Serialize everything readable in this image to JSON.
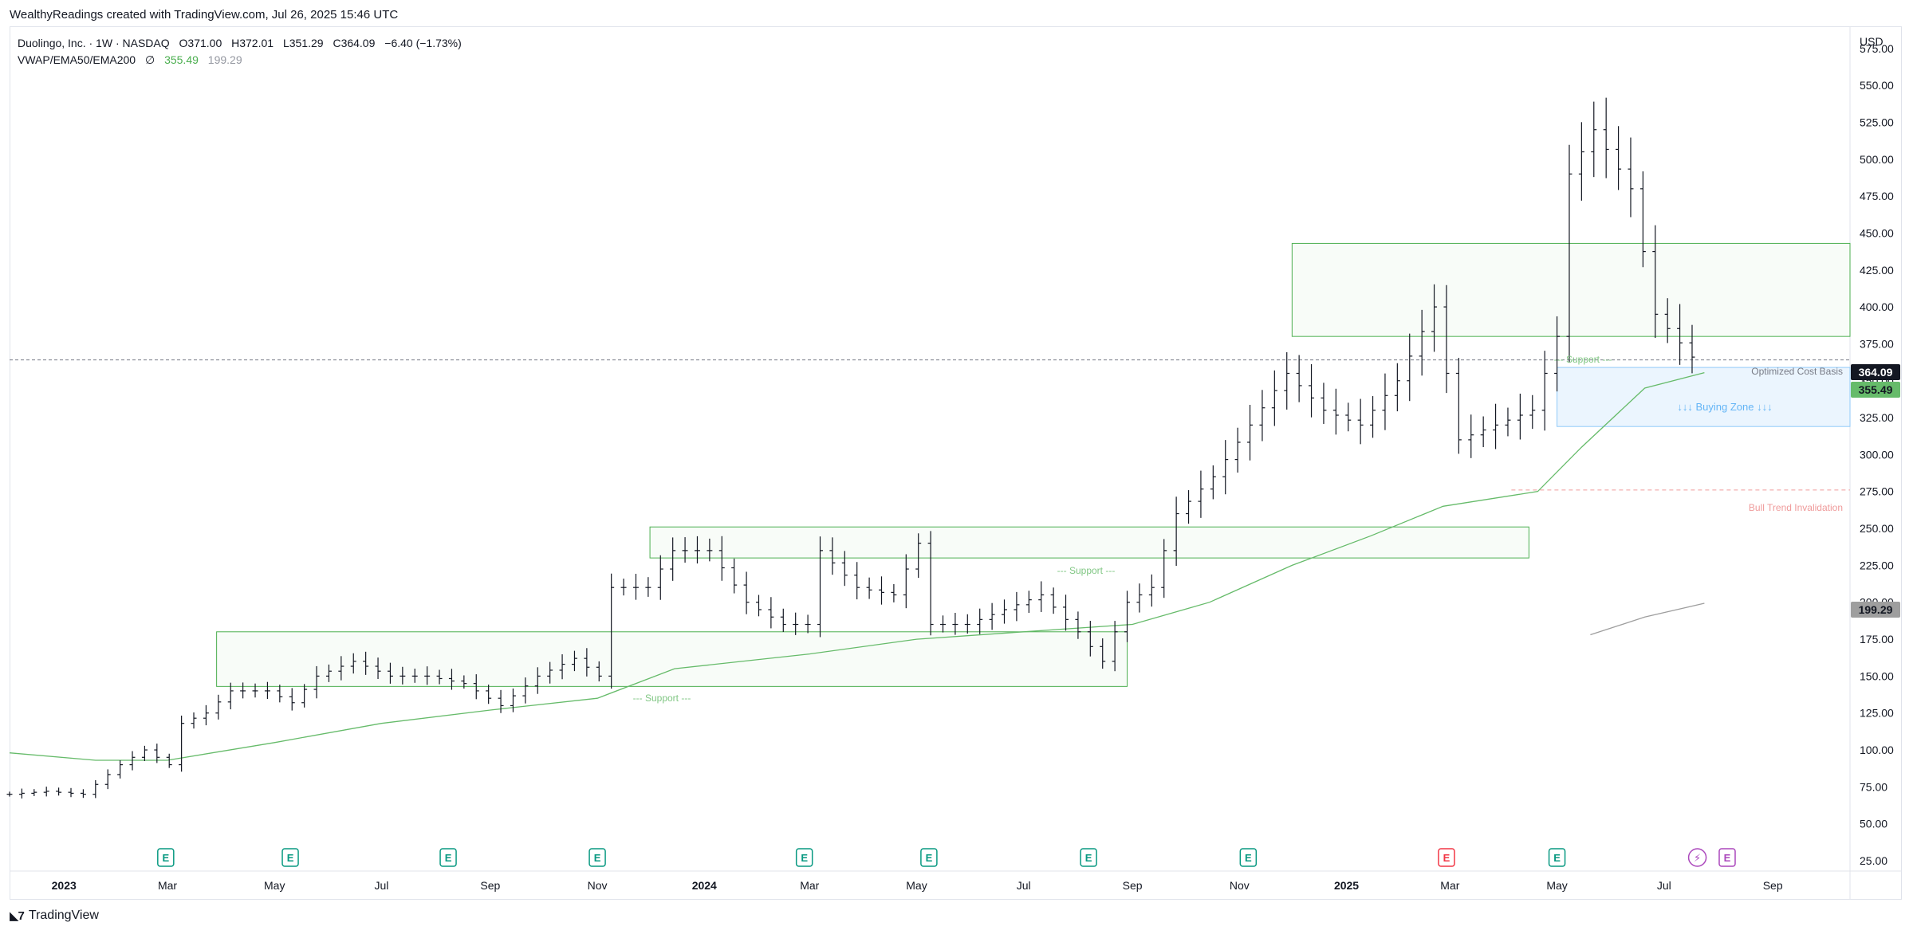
{
  "credit": "WealthyReadings created with TradingView.com, Jul 26, 2025 15:46 UTC",
  "footer_brand": "TradingView",
  "legend": {
    "symbol": "Duolingo, Inc. · 1W · NASDAQ",
    "open": "O371.00",
    "high": "H372.01",
    "low": "L351.29",
    "close": "C364.09",
    "change": "−6.40 (−1.73%)",
    "indicator": "VWAP/EMA50/EMA200",
    "indicator_symbol": "∅",
    "ema50": "355.49",
    "ema200": "199.29"
  },
  "currency": "USD",
  "colors": {
    "bar": "#131722",
    "ema": "#66bb6a",
    "ema200": "#9e9e9e",
    "zone_green": "#4caf50",
    "zone_blue": "#90caf9",
    "invalidation": "#ef9a9a",
    "earnings": "#089981",
    "earnings_neg": "#f23645"
  },
  "annotations": {
    "support1": "--- Support ---",
    "support2": "--- Support ---",
    "support3": "--- Support ---",
    "buying_zone": "↓↓↓ Buying Zone ↓↓↓",
    "cost_basis": "Optimized Cost Basis",
    "invalidation": "Bull Trend Invalidation"
  },
  "price_tags": {
    "last": "364.09",
    "ema50": "355.49",
    "ema200": "199.29"
  },
  "chart_data": {
    "type": "bar",
    "title": "",
    "ylabel": "",
    "ylim": [
      18,
      590
    ],
    "xlim": [
      "2022-12-01",
      "2025-10-15"
    ],
    "y_ticks": [
      25,
      50,
      75,
      100,
      125,
      150,
      175,
      200,
      225,
      250,
      275,
      300,
      325,
      350,
      375,
      400,
      425,
      450,
      475,
      500,
      525,
      550,
      575
    ],
    "x_ticks": [
      {
        "label": "2023",
        "date": "2023-01-01",
        "bold": true
      },
      {
        "label": "Mar",
        "date": "2023-03-01"
      },
      {
        "label": "May",
        "date": "2023-05-01"
      },
      {
        "label": "Jul",
        "date": "2023-07-01"
      },
      {
        "label": "Sep",
        "date": "2023-09-01"
      },
      {
        "label": "Nov",
        "date": "2023-11-01"
      },
      {
        "label": "2024",
        "date": "2024-01-01",
        "bold": true
      },
      {
        "label": "Mar",
        "date": "2024-03-01"
      },
      {
        "label": "May",
        "date": "2024-05-01"
      },
      {
        "label": "Jul",
        "date": "2024-07-01"
      },
      {
        "label": "Sep",
        "date": "2024-09-01"
      },
      {
        "label": "Nov",
        "date": "2024-11-01"
      },
      {
        "label": "2025",
        "date": "2025-01-01",
        "bold": true
      },
      {
        "label": "Mar",
        "date": "2025-03-01"
      },
      {
        "label": "May",
        "date": "2025-05-01"
      },
      {
        "label": "Jul",
        "date": "2025-07-01"
      },
      {
        "label": "Sep",
        "date": "2025-09-01"
      }
    ],
    "bar_anchors": [
      [
        "2022-12-01",
        70
      ],
      [
        "2022-12-22",
        72
      ],
      [
        "2023-01-12",
        70
      ],
      [
        "2023-02-02",
        90
      ],
      [
        "2023-02-16",
        100
      ],
      [
        "2023-03-02",
        90
      ],
      [
        "2023-03-09",
        118
      ],
      [
        "2023-03-23",
        125
      ],
      [
        "2023-04-06",
        140
      ],
      [
        "2023-04-27",
        140
      ],
      [
        "2023-05-11",
        132
      ],
      [
        "2023-05-25",
        150
      ],
      [
        "2023-06-15",
        160
      ],
      [
        "2023-07-06",
        150
      ],
      [
        "2023-07-27",
        150
      ],
      [
        "2023-08-17",
        145
      ],
      [
        "2023-09-07",
        130
      ],
      [
        "2023-09-28",
        150
      ],
      [
        "2023-10-19",
        162
      ],
      [
        "2023-11-02",
        150
      ],
      [
        "2023-11-09",
        210
      ],
      [
        "2023-11-30",
        210
      ],
      [
        "2023-12-14",
        235
      ],
      [
        "2024-01-04",
        235
      ],
      [
        "2024-01-25",
        200
      ],
      [
        "2024-02-15",
        185
      ],
      [
        "2024-02-29",
        185
      ],
      [
        "2024-03-07",
        235
      ],
      [
        "2024-03-28",
        210
      ],
      [
        "2024-04-18",
        205
      ],
      [
        "2024-05-02",
        240
      ],
      [
        "2024-05-09",
        185
      ],
      [
        "2024-05-30",
        185
      ],
      [
        "2024-06-20",
        195
      ],
      [
        "2024-07-11",
        205
      ],
      [
        "2024-08-01",
        180
      ],
      [
        "2024-08-15",
        160
      ],
      [
        "2024-08-29",
        200
      ],
      [
        "2024-09-12",
        210
      ],
      [
        "2024-09-26",
        260
      ],
      [
        "2024-10-17",
        285
      ],
      [
        "2024-11-07",
        320
      ],
      [
        "2024-11-28",
        355
      ],
      [
        "2024-12-19",
        330
      ],
      [
        "2025-01-09",
        320
      ],
      [
        "2025-01-30",
        350
      ],
      [
        "2025-02-20",
        400
      ],
      [
        "2025-03-06",
        310
      ],
      [
        "2025-03-27",
        320
      ],
      [
        "2025-04-17",
        330
      ],
      [
        "2025-05-01",
        380
      ],
      [
        "2025-05-08",
        490
      ],
      [
        "2025-05-22",
        520
      ],
      [
        "2025-06-12",
        480
      ],
      [
        "2025-06-26",
        395
      ],
      [
        "2025-07-17",
        366
      ]
    ],
    "ema50": [
      [
        "2022-12-01",
        98
      ],
      [
        "2023-01-19",
        93
      ],
      [
        "2023-03-01",
        93
      ],
      [
        "2023-05-01",
        105
      ],
      [
        "2023-07-01",
        118
      ],
      [
        "2023-09-01",
        127
      ],
      [
        "2023-11-01",
        135
      ],
      [
        "2023-12-15",
        155
      ],
      [
        "2024-03-01",
        165
      ],
      [
        "2024-05-01",
        175
      ],
      [
        "2024-07-01",
        180
      ],
      [
        "2024-09-01",
        185
      ],
      [
        "2024-10-15",
        200
      ],
      [
        "2024-12-01",
        225
      ],
      [
        "2025-01-15",
        245
      ],
      [
        "2025-02-25",
        265
      ],
      [
        "2025-04-20",
        275
      ],
      [
        "2025-05-15",
        305
      ],
      [
        "2025-06-20",
        345
      ],
      [
        "2025-07-24",
        355.49
      ]
    ],
    "ema200": [
      [
        "2025-05-20",
        178
      ],
      [
        "2025-06-20",
        190
      ],
      [
        "2025-07-24",
        199.29
      ]
    ],
    "zones": [
      {
        "kind": "support",
        "x0": "2023-03-29",
        "x1": "2024-08-29",
        "y0": 143,
        "y1": 180
      },
      {
        "kind": "support",
        "x0": "2023-12-01",
        "x1": "2025-04-15",
        "y0": 230,
        "y1": 251
      },
      {
        "kind": "support",
        "x0": "2024-12-01",
        "x1": "2025-10-15",
        "y0": 380,
        "y1": 443
      },
      {
        "kind": "buying",
        "x0": "2025-05-01",
        "x1": "2025-10-15",
        "y0": 319,
        "y1": 359
      }
    ],
    "lines": [
      {
        "kind": "last_price",
        "y": 364.09
      },
      {
        "kind": "invalidation",
        "x0": "2025-04-05",
        "y": 276
      }
    ],
    "earnings": [
      {
        "date": "2023-02-28",
        "type": "E",
        "tone": "positive"
      },
      {
        "date": "2023-05-10",
        "type": "E",
        "tone": "positive"
      },
      {
        "date": "2023-08-08",
        "type": "E",
        "tone": "positive"
      },
      {
        "date": "2023-11-01",
        "type": "E",
        "tone": "positive"
      },
      {
        "date": "2024-02-27",
        "type": "E",
        "tone": "positive"
      },
      {
        "date": "2024-05-08",
        "type": "E",
        "tone": "positive"
      },
      {
        "date": "2024-08-07",
        "type": "E",
        "tone": "positive"
      },
      {
        "date": "2024-11-06",
        "type": "E",
        "tone": "positive"
      },
      {
        "date": "2025-02-27",
        "type": "E",
        "tone": "negative"
      },
      {
        "date": "2025-05-01",
        "type": "E",
        "tone": "positive"
      },
      {
        "date": "2025-07-20",
        "type": "⚡",
        "tone": "upcoming"
      },
      {
        "date": "2025-08-06",
        "type": "E",
        "tone": "upcoming"
      }
    ]
  }
}
